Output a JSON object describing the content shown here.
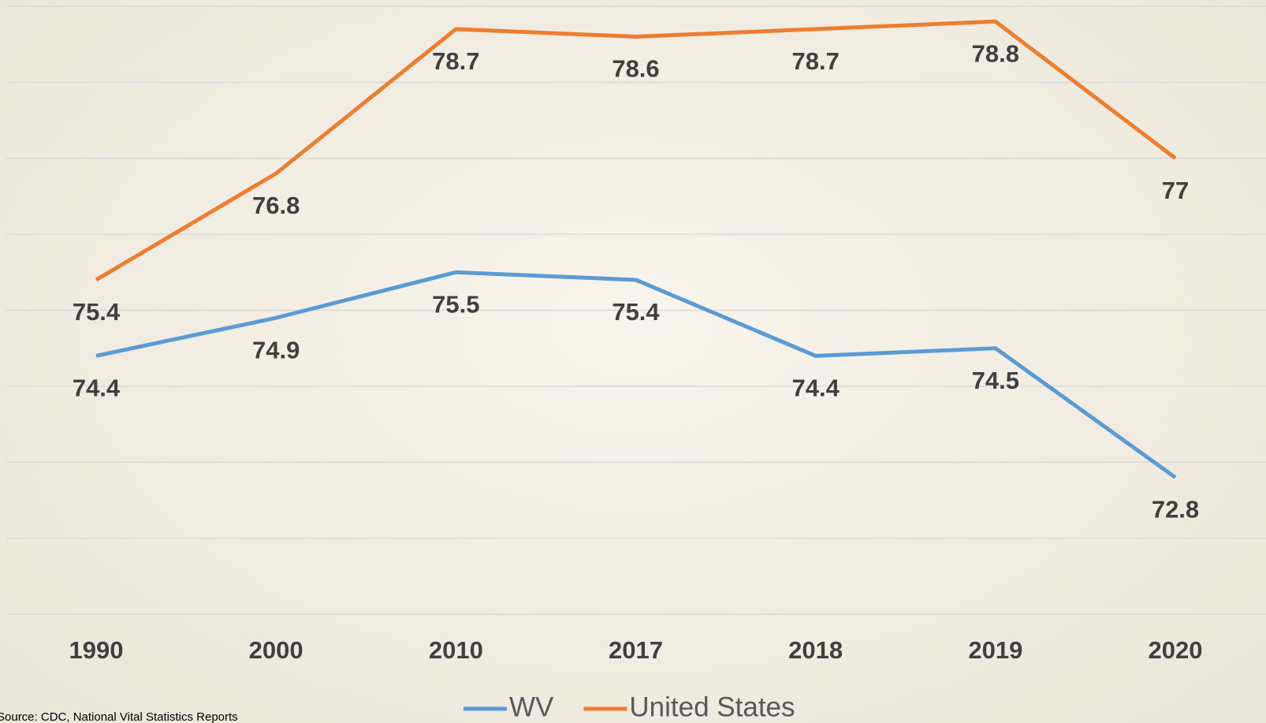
{
  "chart_data": {
    "type": "line",
    "categories": [
      "1990",
      "2000",
      "2010",
      "2017",
      "2018",
      "2019",
      "2020"
    ],
    "series": [
      {
        "name": "WV",
        "color": "#5b9bd5",
        "values": [
          74.4,
          74.9,
          75.5,
          75.4,
          74.4,
          74.5,
          72.8
        ]
      },
      {
        "name": "United States",
        "color": "#ed7d31",
        "values": [
          75.4,
          76.8,
          78.7,
          78.6,
          78.7,
          78.8,
          77
        ]
      }
    ],
    "ylim": [
      71,
      79
    ],
    "yticks": [
      71,
      72,
      73,
      74,
      75,
      76,
      77,
      78,
      79
    ],
    "grid": true,
    "source": "Source: CDC, National Vital Statistics Reports"
  }
}
